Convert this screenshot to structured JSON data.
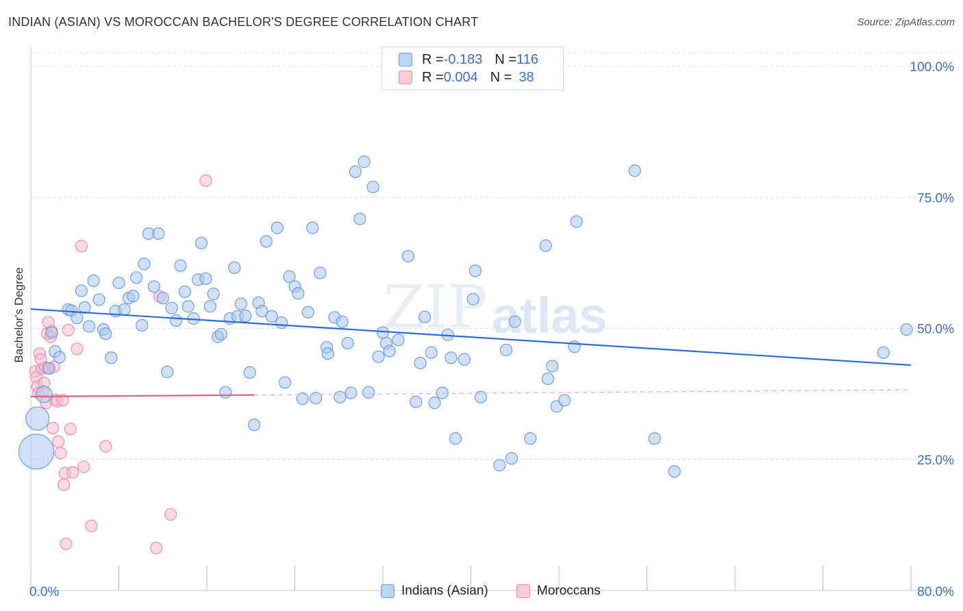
{
  "title": "INDIAN (ASIAN) VS MOROCCAN BACHELOR'S DEGREE CORRELATION CHART",
  "source": "Source: ZipAtlas.com",
  "watermark": {
    "zip": "ZIP",
    "atlas": "atlas"
  },
  "legend": {
    "items": [
      {
        "r_label": "R = ",
        "r_value": "-0.183",
        "n_label": "N = ",
        "n_value": "116",
        "color": "#9dc3f0",
        "border": "#6a9fe0"
      },
      {
        "r_label": "R = ",
        "r_value": "0.004",
        "n_label": "N = ",
        "n_value": "38",
        "color": "#f8b8cc",
        "border": "#ee8aa8"
      }
    ]
  },
  "colors": {
    "blue_fill": "#a9c8f0",
    "blue_stroke": "#6e9ee0",
    "blue_line": "#2a6dd0",
    "pink_fill": "#f7bccd",
    "pink_stroke": "#ee8fab",
    "pink_line": "#e0608a",
    "axis_label": "#3a6fd0",
    "grid": "#dcdcdc"
  },
  "chart_data": {
    "type": "scatter",
    "title": "INDIAN (ASIAN) VS MOROCCAN BACHELOR'S DEGREE CORRELATION CHART",
    "xlabel": "",
    "ylabel": "Bachelor's Degree",
    "xlim": [
      0,
      80
    ],
    "ylim": [
      0,
      105
    ],
    "x_tick_labels": [
      {
        "value": 0,
        "label": "0.0%"
      },
      {
        "value": 80,
        "label": "80.0%"
      }
    ],
    "y_tick_labels": [
      {
        "value": 25,
        "label": "25.0%"
      },
      {
        "value": 50,
        "label": "50.0%"
      },
      {
        "value": 75,
        "label": "75.0%"
      },
      {
        "value": 100,
        "label": "100.0%"
      }
    ],
    "grid": true,
    "series": [
      {
        "name": "Indians (Asian)",
        "r": -0.183,
        "n": 116,
        "trend": {
          "x": [
            0,
            80
          ],
          "y": [
            53.7,
            43.0
          ],
          "dashed_extension": false
        },
        "points": [
          [
            0.5,
            26.5,
            3
          ],
          [
            0.6,
            32.8,
            2
          ],
          [
            1.2,
            37.4,
            1.4
          ],
          [
            1.6,
            42.4,
            1
          ],
          [
            1.9,
            49.2,
            1
          ],
          [
            2.2,
            45.6,
            1
          ],
          [
            2.6,
            44.5,
            1
          ],
          [
            3.4,
            53.6,
            1
          ],
          [
            3.7,
            53.4,
            1
          ],
          [
            4.2,
            52.0,
            1
          ],
          [
            4.6,
            57.2,
            1
          ],
          [
            4.9,
            54.0,
            1
          ],
          [
            5.3,
            50.4,
            1
          ],
          [
            5.7,
            59.1,
            1
          ],
          [
            6.2,
            55.5,
            1
          ],
          [
            6.6,
            49.8,
            1
          ],
          [
            6.8,
            49.0,
            1
          ],
          [
            7.3,
            44.4,
            1
          ],
          [
            7.7,
            53.3,
            1
          ],
          [
            8.0,
            58.7,
            1
          ],
          [
            8.5,
            53.6,
            1
          ],
          [
            8.9,
            55.8,
            1
          ],
          [
            9.3,
            56.2,
            1
          ],
          [
            9.6,
            59.7,
            1
          ],
          [
            10.1,
            50.6,
            1
          ],
          [
            10.3,
            62.3,
            1
          ],
          [
            10.7,
            68.1,
            1
          ],
          [
            11.2,
            58.0,
            1
          ],
          [
            11.6,
            68.1,
            1
          ],
          [
            12.0,
            55.8,
            1
          ],
          [
            12.4,
            41.7,
            1
          ],
          [
            12.8,
            53.9,
            1
          ],
          [
            13.2,
            51.5,
            1
          ],
          [
            13.6,
            62.0,
            1
          ],
          [
            14.0,
            57.0,
            1
          ],
          [
            14.3,
            54.2,
            1
          ],
          [
            14.8,
            51.9,
            1
          ],
          [
            15.2,
            59.3,
            1
          ],
          [
            15.5,
            66.3,
            1
          ],
          [
            15.9,
            59.5,
            1
          ],
          [
            16.3,
            54.2,
            1
          ],
          [
            16.6,
            56.6,
            1
          ],
          [
            17.0,
            48.4,
            1
          ],
          [
            17.3,
            48.9,
            1
          ],
          [
            17.7,
            37.8,
            1
          ],
          [
            18.1,
            51.9,
            1
          ],
          [
            18.5,
            61.6,
            1
          ],
          [
            18.8,
            52.3,
            1
          ],
          [
            19.1,
            54.7,
            1
          ],
          [
            19.5,
            52.4,
            1
          ],
          [
            19.9,
            41.6,
            1
          ],
          [
            20.3,
            31.6,
            1
          ],
          [
            20.7,
            54.9,
            1
          ],
          [
            21.0,
            53.3,
            1
          ],
          [
            21.4,
            66.6,
            1
          ],
          [
            21.9,
            52.3,
            1
          ],
          [
            22.4,
            69.2,
            1
          ],
          [
            22.8,
            51.1,
            1
          ],
          [
            23.1,
            39.7,
            1
          ],
          [
            23.5,
            59.9,
            1
          ],
          [
            24.0,
            58.0,
            1
          ],
          [
            24.3,
            56.7,
            1
          ],
          [
            24.7,
            36.6,
            1
          ],
          [
            25.2,
            53.1,
            1
          ],
          [
            25.6,
            69.2,
            1
          ],
          [
            25.9,
            36.7,
            1
          ],
          [
            26.3,
            60.6,
            1
          ],
          [
            26.9,
            46.4,
            1
          ],
          [
            27.0,
            45.2,
            1
          ],
          [
            27.6,
            52.1,
            1
          ],
          [
            28.1,
            36.9,
            1
          ],
          [
            28.3,
            51.3,
            1
          ],
          [
            28.8,
            47.2,
            1
          ],
          [
            29.1,
            37.7,
            1
          ],
          [
            29.5,
            79.9,
            1
          ],
          [
            29.9,
            70.9,
            1
          ],
          [
            30.3,
            81.8,
            1
          ],
          [
            30.7,
            37.8,
            1
          ],
          [
            31.1,
            77.0,
            1
          ],
          [
            31.6,
            44.6,
            1
          ],
          [
            32.0,
            49.2,
            1
          ],
          [
            32.3,
            47.2,
            1
          ],
          [
            32.6,
            45.7,
            1
          ],
          [
            33.4,
            47.8,
            1
          ],
          [
            34.3,
            63.8,
            1
          ],
          [
            35.0,
            36.0,
            1
          ],
          [
            35.4,
            43.4,
            1
          ],
          [
            35.8,
            52.2,
            1
          ],
          [
            36.4,
            45.4,
            1
          ],
          [
            36.7,
            35.8,
            1
          ],
          [
            37.4,
            37.7,
            1
          ],
          [
            37.9,
            48.8,
            1
          ],
          [
            38.2,
            44.4,
            1
          ],
          [
            38.6,
            29.0,
            1
          ],
          [
            39.4,
            44.1,
            1
          ],
          [
            40.2,
            55.6,
            1
          ],
          [
            40.4,
            61.0,
            1
          ],
          [
            40.9,
            36.9,
            1
          ],
          [
            42.6,
            23.9,
            1
          ],
          [
            43.2,
            45.9,
            1
          ],
          [
            43.7,
            25.2,
            1
          ],
          [
            44.0,
            51.3,
            1
          ],
          [
            45.4,
            29.0,
            1
          ],
          [
            46.8,
            65.8,
            1
          ],
          [
            47.0,
            40.4,
            1
          ],
          [
            47.4,
            42.8,
            1
          ],
          [
            47.8,
            35.1,
            1
          ],
          [
            48.5,
            36.3,
            1
          ],
          [
            49.4,
            46.5,
            1
          ],
          [
            49.6,
            70.4,
            1
          ],
          [
            54.9,
            80.1,
            1
          ],
          [
            56.7,
            29.0,
            1
          ],
          [
            58.5,
            22.7,
            1
          ],
          [
            77.5,
            45.4,
            1
          ],
          [
            79.6,
            49.8,
            1
          ]
        ]
      },
      {
        "name": "Moroccans",
        "r": 0.004,
        "n": 38,
        "trend": {
          "x": [
            0,
            20.3
          ],
          "y": [
            37.0,
            37.3
          ],
          "dashed_extension": true,
          "extension_to": [
            80,
            38.3
          ]
        },
        "points": [
          [
            0.4,
            41.8,
            1
          ],
          [
            0.5,
            40.7,
            1
          ],
          [
            0.6,
            38.9,
            1
          ],
          [
            0.7,
            37.7,
            1
          ],
          [
            0.8,
            45.2,
            1
          ],
          [
            1.0,
            42.3,
            1
          ],
          [
            1.1,
            38.0,
            1
          ],
          [
            1.2,
            39.6,
            1
          ],
          [
            1.3,
            42.6,
            1
          ],
          [
            1.4,
            35.8,
            1
          ],
          [
            1.5,
            49.0,
            1
          ],
          [
            1.6,
            51.2,
            1
          ],
          [
            1.7,
            42.4,
            1
          ],
          [
            1.8,
            48.4,
            1
          ],
          [
            1.9,
            49.5,
            1
          ],
          [
            2.0,
            31.0,
            1
          ],
          [
            2.1,
            42.7,
            1
          ],
          [
            2.2,
            36.4,
            1
          ],
          [
            2.4,
            36.1,
            1
          ],
          [
            2.5,
            28.4,
            1
          ],
          [
            2.7,
            26.2,
            1
          ],
          [
            2.9,
            36.3,
            1
          ],
          [
            3.0,
            20.2,
            1
          ],
          [
            3.1,
            22.4,
            1
          ],
          [
            3.2,
            8.9,
            1
          ],
          [
            3.4,
            49.7,
            1
          ],
          [
            3.6,
            30.8,
            1
          ],
          [
            3.8,
            22.5,
            1
          ],
          [
            4.2,
            46.1,
            1
          ],
          [
            4.6,
            65.7,
            1
          ],
          [
            4.8,
            23.6,
            1
          ],
          [
            5.5,
            12.3,
            1
          ],
          [
            6.8,
            27.5,
            1
          ],
          [
            11.4,
            8.1,
            1
          ],
          [
            11.7,
            56.1,
            1
          ],
          [
            12.7,
            14.5,
            1
          ],
          [
            15.9,
            78.2,
            1
          ],
          [
            0.9,
            44.1,
            1
          ]
        ]
      }
    ]
  }
}
